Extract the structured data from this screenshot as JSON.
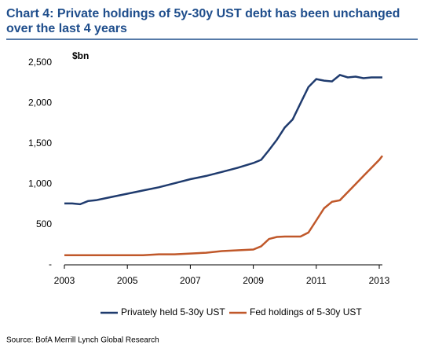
{
  "chart_data": {
    "type": "line",
    "title": "Chart 4: Private holdings of 5y-30y UST debt has been unchanged over the last 4 years",
    "y_label": "$bn",
    "source": "Source: BofA Merrill Lynch Global Research",
    "x": [
      2003,
      2003.25,
      2003.5,
      2003.75,
      2004,
      2004.5,
      2005,
      2005.5,
      2006,
      2006.5,
      2007,
      2007.5,
      2008,
      2008.5,
      2009,
      2009.25,
      2009.5,
      2009.75,
      2010,
      2010.25,
      2010.5,
      2010.75,
      2011,
      2011.25,
      2011.5,
      2011.75,
      2012,
      2012.25,
      2012.5,
      2012.75,
      2013,
      2013.1
    ],
    "series": [
      {
        "name": "Privately held 5-30y UST",
        "color": "#1f3b6e",
        "values": [
          760,
          760,
          750,
          790,
          800,
          840,
          880,
          920,
          960,
          1010,
          1060,
          1100,
          1150,
          1200,
          1260,
          1300,
          1420,
          1550,
          1700,
          1800,
          2000,
          2200,
          2300,
          2280,
          2270,
          2350,
          2320,
          2330,
          2310,
          2320,
          2320,
          2320
        ]
      },
      {
        "name": "Fed holdings of 5-30y UST",
        "color": "#c0582a",
        "values": [
          120,
          120,
          120,
          120,
          120,
          120,
          120,
          120,
          130,
          130,
          140,
          150,
          170,
          180,
          190,
          230,
          320,
          345,
          350,
          350,
          350,
          400,
          550,
          700,
          780,
          800,
          900,
          1000,
          1100,
          1200,
          1300,
          1350
        ]
      }
    ],
    "xlim": [
      2003,
      2013.1
    ],
    "xticks": [
      2003,
      2005,
      2007,
      2009,
      2011,
      2013
    ],
    "ylim": [
      0,
      2500
    ],
    "yticks": [
      {
        "value": 0,
        "label": "-"
      },
      {
        "value": 500,
        "label": "500"
      },
      {
        "value": 1000,
        "label": "1,000"
      },
      {
        "value": 1500,
        "label": "1,500"
      },
      {
        "value": 2000,
        "label": "2,000"
      },
      {
        "value": 2500,
        "label": "2,500"
      }
    ],
    "grid": false,
    "legend": "bottom"
  }
}
